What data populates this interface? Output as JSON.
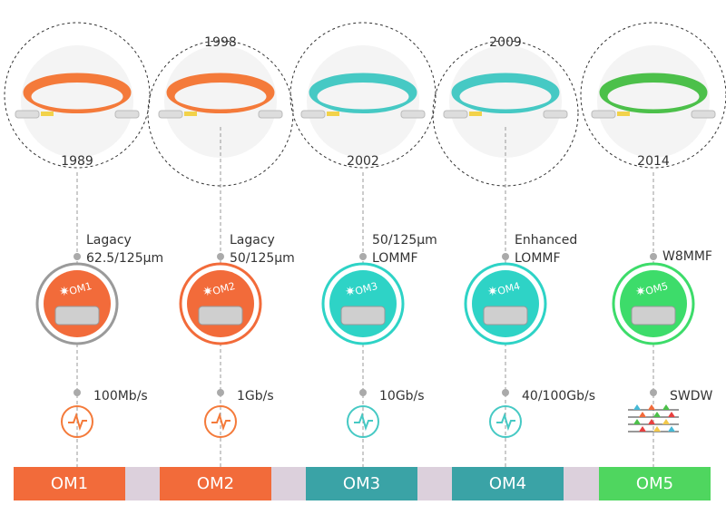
{
  "columns": [
    {
      "year": "1989",
      "fiber": [
        "Lagacy",
        "62.5/125µm"
      ],
      "spool": "OM1",
      "speed": "100Mb/s",
      "label": "OM1"
    },
    {
      "year": "1998",
      "fiber": [
        "Lagacy",
        "50/125µm"
      ],
      "spool": "OM2",
      "speed": "1Gb/s",
      "label": "OM2"
    },
    {
      "year": "2002",
      "fiber": [
        "50/125µm",
        "LOMMF"
      ],
      "spool": "OM3",
      "speed": "10Gb/s",
      "label": "OM3"
    },
    {
      "year": "2009",
      "fiber": [
        "Enhanced",
        "LOMMF"
      ],
      "spool": "OM4",
      "speed": "40/100Gb/s",
      "label": "OM4"
    },
    {
      "year": "2014",
      "fiber": [
        "W8MMF"
      ],
      "spool": "OM5",
      "speed": "SWDW",
      "label": "OM5"
    }
  ]
}
